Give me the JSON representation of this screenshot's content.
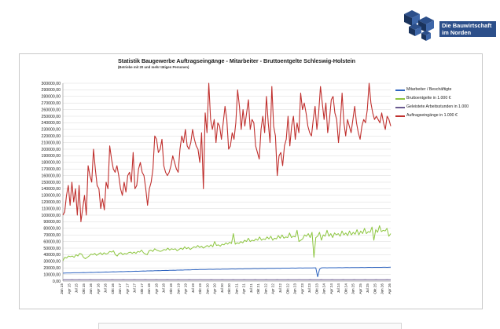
{
  "logo": {
    "line1": "Die Bauwirtschaft",
    "line2": "im Norden",
    "icon": "cube-logo-icon"
  },
  "chart_data": {
    "type": "line",
    "title": "Statistik Baugewerbe Auftragseingänge - Mitarbeiter - Bruttoentgelte Schleswig-Holstein",
    "subtitle": "(Betriebe mit 20 und mehr tätigen Personen)",
    "xlabel": "",
    "ylabel": "",
    "ylim": [
      0,
      300000
    ],
    "yticks": [
      "0,00",
      "10000,00",
      "20000,00",
      "30000,00",
      "40000,00",
      "50000,00",
      "60000,00",
      "70000,00",
      "80000,00",
      "90000,00",
      "100000,00",
      "110000,00",
      "120000,00",
      "130000,00",
      "140000,00",
      "150000,00",
      "160000,00",
      "170000,00",
      "180000,00",
      "190000,00",
      "200000,00",
      "210000,00",
      "220000,00",
      "230000,00",
      "240000,00",
      "250000,00",
      "260000,00",
      "270000,00",
      "280000,00",
      "290000,00",
      "300000,00"
    ],
    "grid": true,
    "legend_position": "right",
    "xticks": [
      "Jan 15",
      "Apr 15",
      "Jul 15",
      "Okt 15",
      "Jan 16",
      "Apr 16",
      "Jul 16",
      "Okt 16",
      "Jan 17",
      "Apr 17",
      "Jul 17",
      "Okt 17",
      "Jan 18",
      "Apr 18",
      "Jul 18",
      "Okt 18",
      "Jan 19",
      "Apr 19",
      "Jul 19",
      "Okt 19",
      "Jan 20",
      "Apr 20",
      "Jul 20",
      "Okt 20",
      "Jan 21",
      "Apr 21",
      "Jul 21",
      "Okt 21",
      "Jan 22",
      "Apr 22",
      "Jul 22",
      "Okt 22",
      "Jan 23",
      "Apr 23",
      "Jul 23",
      "Okt 23",
      "Jan 24",
      "Apr 24",
      "Jul 24",
      "Okt 24",
      "Jan 25",
      "Apr 25",
      "Jul 25",
      "Okt 25",
      "Jan 26",
      "Apr 26"
    ],
    "series": [
      {
        "name": "Mitarbeiter / Beschäftigte",
        "color": "#2e64c0",
        "values": [
          12000,
          12200,
          12300,
          12400,
          12300,
          12500,
          12600,
          12700,
          12600,
          12700,
          12800,
          12900,
          12800,
          13000,
          13100,
          13200,
          13100,
          13300,
          13400,
          13500,
          13400,
          13600,
          13700,
          13800,
          13700,
          13900,
          14000,
          14100,
          14000,
          14200,
          14300,
          14400,
          14300,
          14500,
          14600,
          14700,
          14600,
          14800,
          14900,
          15000,
          14900,
          15100,
          15200,
          15300,
          15200,
          15400,
          15500,
          15600,
          15500,
          15700,
          15800,
          15900,
          15800,
          16000,
          16100,
          16200,
          16100,
          16300,
          16400,
          16500,
          16400,
          16600,
          16700,
          16800,
          16700,
          16900,
          17000,
          17100,
          17000,
          17200,
          17300,
          17400,
          17300,
          17500,
          17600,
          17600,
          17500,
          17700,
          17800,
          17800,
          17700,
          17900,
          18000,
          18000,
          17900,
          18100,
          18200,
          18200,
          18100,
          18300,
          18400,
          18400,
          18300,
          18500,
          18600,
          18600,
          18500,
          18700,
          18800,
          18800,
          18700,
          18900,
          19000,
          19000,
          18900,
          19100,
          19200,
          19200,
          19100,
          19300,
          19400,
          19400,
          19300,
          19400,
          19500,
          19500,
          19400,
          19600,
          19700,
          19700,
          19600,
          19700,
          19800,
          19800,
          19700,
          19800,
          19900,
          19900,
          19800,
          19900,
          20000,
          20000,
          19900,
          20000,
          20100,
          20100,
          6500,
          18000,
          20100,
          20200,
          20200,
          20100,
          20200,
          20300,
          20300,
          20200,
          20300,
          20400,
          20400,
          20300,
          20400,
          20500,
          20500,
          20400,
          20500,
          20600,
          20600,
          20500,
          20600,
          20700,
          20700,
          20600,
          20700,
          20800,
          20800,
          20700,
          20800,
          20900,
          20900,
          20800,
          20900,
          21000,
          21000,
          20900,
          21000,
          21100
        ]
      },
      {
        "name": "Bruttoentgelte in 1.000 €",
        "color": "#8dc63f",
        "values": [
          31000,
          36000,
          35000,
          38000,
          37000,
          38000,
          36000,
          40000,
          38000,
          42000,
          41000,
          36000,
          34000,
          36000,
          38000,
          41000,
          40000,
          42000,
          39000,
          41000,
          43000,
          40000,
          43000,
          41000,
          42000,
          45000,
          44000,
          46000,
          40000,
          38000,
          42000,
          43000,
          40000,
          42000,
          41000,
          43000,
          44000,
          42000,
          44000,
          42000,
          45000,
          44000,
          47000,
          43000,
          41000,
          40000,
          46000,
          47000,
          45000,
          49000,
          47000,
          46000,
          45000,
          46000,
          48000,
          47000,
          50000,
          47000,
          49000,
          48000,
          49000,
          46000,
          48000,
          50000,
          48000,
          52000,
          49000,
          51000,
          48000,
          50000,
          52000,
          51000,
          54000,
          51000,
          53000,
          50000,
          52000,
          54000,
          52000,
          55000,
          52000,
          60000,
          54000,
          55000,
          53000,
          56000,
          55000,
          58000,
          56000,
          59000,
          57000,
          72000,
          56000,
          58000,
          57000,
          60000,
          58000,
          62000,
          60000,
          65000,
          60000,
          62000,
          61000,
          64000,
          62000,
          67000,
          62000,
          64000,
          63000,
          67000,
          64000,
          68000,
          62000,
          65000,
          64000,
          69000,
          65000,
          70000,
          65000,
          67000,
          66000,
          73000,
          66000,
          68000,
          67000,
          77000,
          60000,
          62000,
          64000,
          70000,
          68000,
          72000,
          66000,
          74000,
          36000,
          66000,
          68000,
          74000,
          62000,
          70000,
          68000,
          77000,
          68000,
          72000,
          66000,
          73000,
          70000,
          72000,
          68000,
          76000,
          70000,
          73000,
          69000,
          76000,
          70000,
          74000,
          71000,
          78000,
          70000,
          76000,
          72000,
          80000,
          72000,
          75000,
          74000,
          82000,
          62000,
          78000,
          74000,
          84000,
          75000,
          77000,
          76000,
          80000,
          68000,
          72000
        ]
      },
      {
        "name": "Geleistete Arbeitsstunden in 1.000",
        "color": "#6a5a8f",
        "values": [
          2000,
          2100,
          2050,
          2150,
          2100,
          2200,
          2150,
          2100,
          2050,
          2200,
          2150,
          2100,
          2050,
          2100,
          2150,
          2200,
          2150,
          2100,
          2050,
          2100,
          2150,
          2200,
          2150,
          2100,
          2050,
          2100,
          2150,
          2200,
          2150,
          2100,
          2050,
          2100,
          2150,
          2200,
          2150,
          2100,
          2050,
          2100,
          2150,
          2200,
          2150,
          2100,
          2050,
          2100,
          2150,
          2200,
          2150,
          2100,
          2050,
          2100,
          2150,
          2200,
          2150,
          2100,
          2050,
          2100,
          2150,
          2200,
          2150,
          2100,
          2050,
          2100,
          2150,
          2200,
          2150,
          2100,
          2050,
          2100,
          2150,
          2200,
          2150,
          2100,
          2050,
          2100,
          2150,
          2200,
          2150,
          2100,
          2050,
          2100,
          2150,
          2200,
          2150,
          2100,
          2050,
          2100,
          2150,
          2200,
          2150,
          2100,
          2050,
          2100,
          2150,
          2200,
          2150,
          2100,
          2050,
          2100,
          2150,
          2200,
          2150,
          2100,
          2050,
          2100,
          2150,
          2200,
          2150,
          2100,
          2050,
          2100,
          2150,
          2200,
          2150,
          2100,
          2050,
          2100,
          2150,
          2200,
          2150,
          2100,
          2050,
          2100,
          2150,
          2200,
          2150,
          2100,
          2050,
          2100,
          2150,
          2200,
          2150,
          2100,
          2050,
          2100,
          2150,
          2200,
          2150,
          2100,
          2050,
          2100,
          2150,
          2200,
          2150,
          2100,
          2050,
          2100,
          2150,
          2200,
          2150,
          2100,
          2050,
          2100,
          2150,
          2200,
          2150,
          2100,
          2050,
          2100,
          2150,
          2200,
          2150,
          2100,
          2050,
          2100,
          2150,
          2200,
          2150,
          2100,
          2050,
          2100,
          2150,
          2200,
          2150,
          2100,
          2050,
          2100,
          2150,
          2200,
          2150,
          2100
        ]
      },
      {
        "name": "Auftragseingänge in 1.000 €",
        "color": "#c0302e",
        "values": [
          100000,
          105000,
          130000,
          145000,
          115000,
          150000,
          120000,
          140000,
          100000,
          145000,
          90000,
          110000,
          130000,
          100000,
          175000,
          160000,
          150000,
          200000,
          170000,
          145000,
          140000,
          110000,
          125000,
          108000,
          150000,
          140000,
          205000,
          185000,
          170000,
          165000,
          175000,
          160000,
          140000,
          130000,
          150000,
          135000,
          160000,
          165000,
          150000,
          195000,
          140000,
          145000,
          170000,
          180000,
          165000,
          160000,
          140000,
          115000,
          140000,
          150000,
          170000,
          220000,
          215000,
          195000,
          200000,
          215000,
          175000,
          165000,
          160000,
          165000,
          175000,
          190000,
          180000,
          170000,
          165000,
          200000,
          220000,
          210000,
          230000,
          205000,
          200000,
          210000,
          230000,
          215000,
          205000,
          200000,
          180000,
          225000,
          140000,
          255000,
          225000,
          300000,
          245000,
          230000,
          245000,
          210000,
          240000,
          235000,
          215000,
          240000,
          265000,
          245000,
          200000,
          205000,
          225000,
          215000,
          240000,
          290000,
          265000,
          230000,
          260000,
          235000,
          255000,
          275000,
          230000,
          245000,
          240000,
          205000,
          195000,
          185000,
          230000,
          250000,
          225000,
          280000,
          240000,
          210000,
          295000,
          235000,
          220000,
          160000,
          190000,
          195000,
          175000,
          205000,
          215000,
          250000,
          205000,
          235000,
          250000,
          215000,
          240000,
          225000,
          285000,
          260000,
          270000,
          255000,
          235000,
          225000,
          220000,
          245000,
          265000,
          230000,
          255000,
          295000,
          270000,
          245000,
          270000,
          225000,
          245000,
          275000,
          280000,
          255000,
          245000,
          210000,
          240000,
          285000,
          240000,
          220000,
          245000,
          235000,
          225000,
          245000,
          265000,
          240000,
          225000,
          215000,
          235000,
          245000,
          240000,
          260000,
          300000,
          270000,
          255000,
          245000,
          250000,
          245000,
          240000,
          255000,
          240000,
          230000,
          250000,
          245000,
          235000
        ]
      }
    ]
  }
}
